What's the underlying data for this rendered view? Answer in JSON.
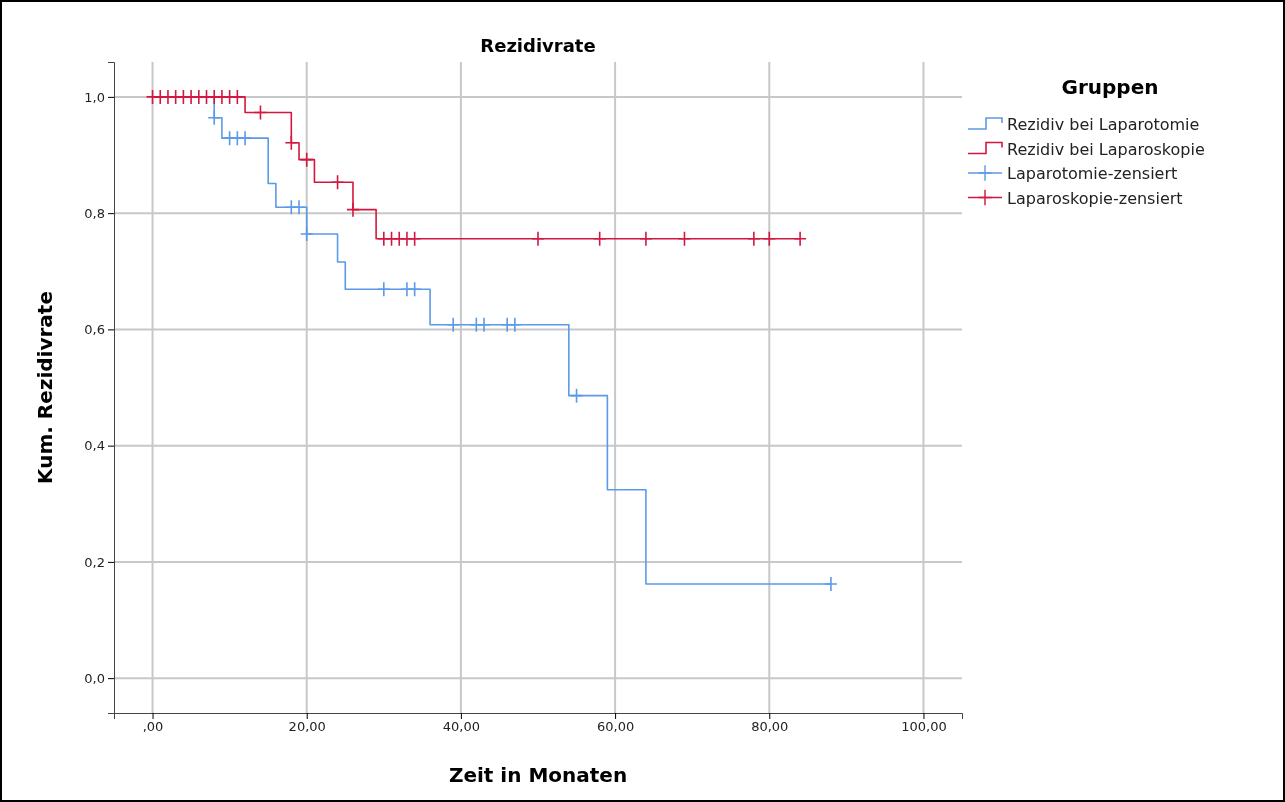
{
  "chart_data": {
    "type": "step",
    "title": "Rezidivrate",
    "xlabel": "Zeit in Monaten",
    "ylabel": "Kum. Rezidivrate",
    "legend_title": "Gruppen",
    "legend": "right",
    "grid": true,
    "line_style": "solid",
    "xlim": [
      -5,
      105
    ],
    "xticks": [
      {
        "value": 0,
        "label": ",00"
      },
      {
        "value": 20,
        "label": "20,00"
      },
      {
        "value": 40,
        "label": "40,00"
      },
      {
        "value": 60,
        "label": "60,00"
      },
      {
        "value": 80,
        "label": "80,00"
      },
      {
        "value": 100,
        "label": "100,00"
      }
    ],
    "ylim": [
      -0.06,
      1.06
    ],
    "yticks": [
      {
        "value": 0,
        "label": "0,0"
      },
      {
        "value": 0.2,
        "label": "0,2"
      },
      {
        "value": 0.4,
        "label": "0,4"
      },
      {
        "value": 0.6,
        "label": "0,6"
      },
      {
        "value": 0.8,
        "label": "0,8"
      },
      {
        "value": 1,
        "label": "1,0"
      }
    ],
    "series": [
      {
        "name": "Rezidiv bei Laparotomie",
        "color": "#5b9ae8",
        "x": [
          0,
          8,
          9,
          15,
          16,
          20,
          24,
          25,
          36,
          54,
          59,
          64,
          88
        ],
        "values": [
          1,
          0.964,
          0.929,
          0.851,
          0.81,
          0.764,
          0.716,
          0.669,
          0.608,
          0.486,
          0.324,
          0.162,
          0.162
        ]
      },
      {
        "name": "Rezidiv bei Laparoskopie",
        "color": "#d4173f",
        "x": [
          0,
          12,
          18,
          19,
          21,
          26,
          29,
          84
        ],
        "values": [
          1,
          0.973,
          0.921,
          0.892,
          0.853,
          0.806,
          0.756,
          0.756
        ]
      },
      {
        "name": "Laparotomie-zensiert",
        "type": "scatter",
        "marker": "cross",
        "color": "#5b9ae8",
        "x": [
          8,
          10,
          11,
          12,
          18,
          19,
          20,
          30,
          33,
          34,
          39,
          42,
          43,
          46,
          47,
          55,
          88
        ],
        "values": [
          0.964,
          0.929,
          0.929,
          0.929,
          0.81,
          0.81,
          0.764,
          0.669,
          0.669,
          0.669,
          0.608,
          0.608,
          0.608,
          0.608,
          0.608,
          0.486,
          0.162
        ]
      },
      {
        "name": "Laparoskopie-zensiert",
        "type": "scatter",
        "marker": "cross",
        "color": "#d4173f",
        "x": [
          0,
          1,
          2,
          3,
          4,
          5,
          6,
          7,
          8,
          9,
          10,
          11,
          14,
          18,
          20,
          24,
          26,
          30,
          31,
          32,
          33,
          34,
          50,
          58,
          64,
          69,
          78,
          80,
          84
        ],
        "values": [
          1,
          1,
          1,
          1,
          1,
          1,
          1,
          1,
          1,
          1,
          1,
          1,
          0.973,
          0.921,
          0.892,
          0.853,
          0.806,
          0.756,
          0.756,
          0.756,
          0.756,
          0.756,
          0.756,
          0.756,
          0.756,
          0.756,
          0.756,
          0.756,
          0.756
        ]
      }
    ]
  }
}
